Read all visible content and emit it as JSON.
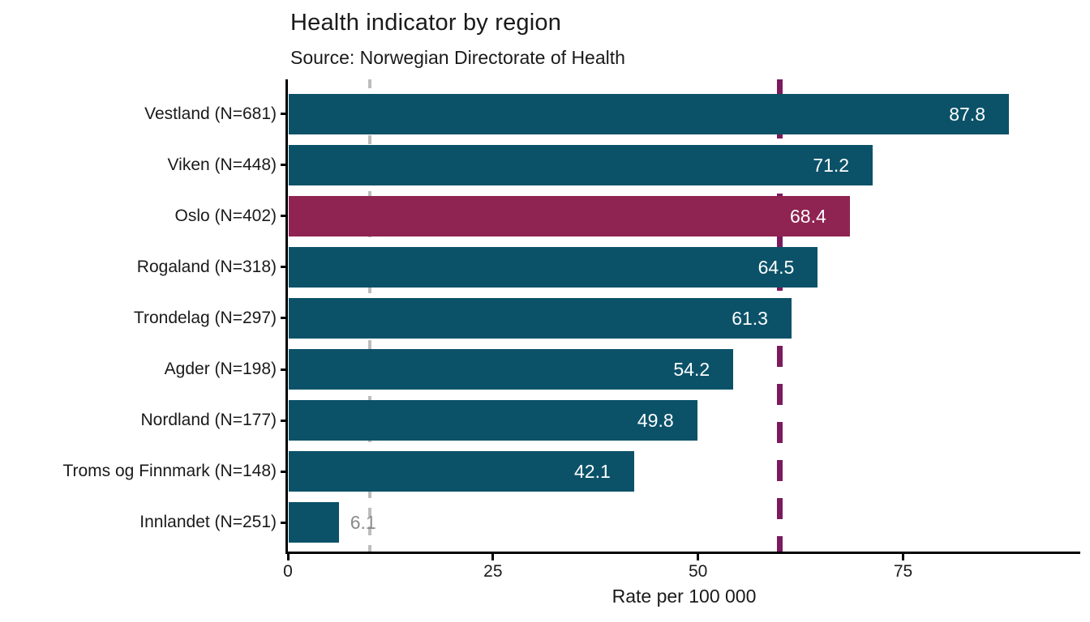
{
  "header": {
    "title": "Health indicator by region",
    "subtitle": "Source: Norwegian Directorate of Health"
  },
  "chart_data": {
    "type": "bar",
    "orientation": "horizontal",
    "title": "Health indicator by region",
    "subtitle": "Source: Norwegian Directorate of Health",
    "categories": [
      "Vestland (N=681)",
      "Viken (N=448)",
      "Oslo (N=402)",
      "Rogaland (N=318)",
      "Trondelag (N=297)",
      "Agder (N=198)",
      "Nordland (N=177)",
      "Troms og Finnmark (N=148)",
      "Innlandet (N=251)"
    ],
    "values": [
      87.8,
      71.2,
      68.4,
      64.5,
      61.3,
      54.2,
      49.8,
      42.1,
      6.1
    ],
    "highlight_category": "Oslo (N=402)",
    "bar_color": "#0b5269",
    "highlight_color": "#8f2452",
    "value_label_color_inside": "#ffffff",
    "value_label_color_outside": "#8a8a8a",
    "outside_label_threshold": 10,
    "xlabel": "Rate per 100 000",
    "x_ticks": [
      0,
      25,
      50,
      75
    ],
    "xlim": [
      0,
      96.6
    ],
    "grid": false,
    "legend": "none",
    "reference_lines": [
      {
        "value": 10,
        "style": "dashed",
        "color": "#bdbdbd"
      },
      {
        "value": 60,
        "style": "dashed",
        "color": "#7b1b5e"
      }
    ]
  }
}
